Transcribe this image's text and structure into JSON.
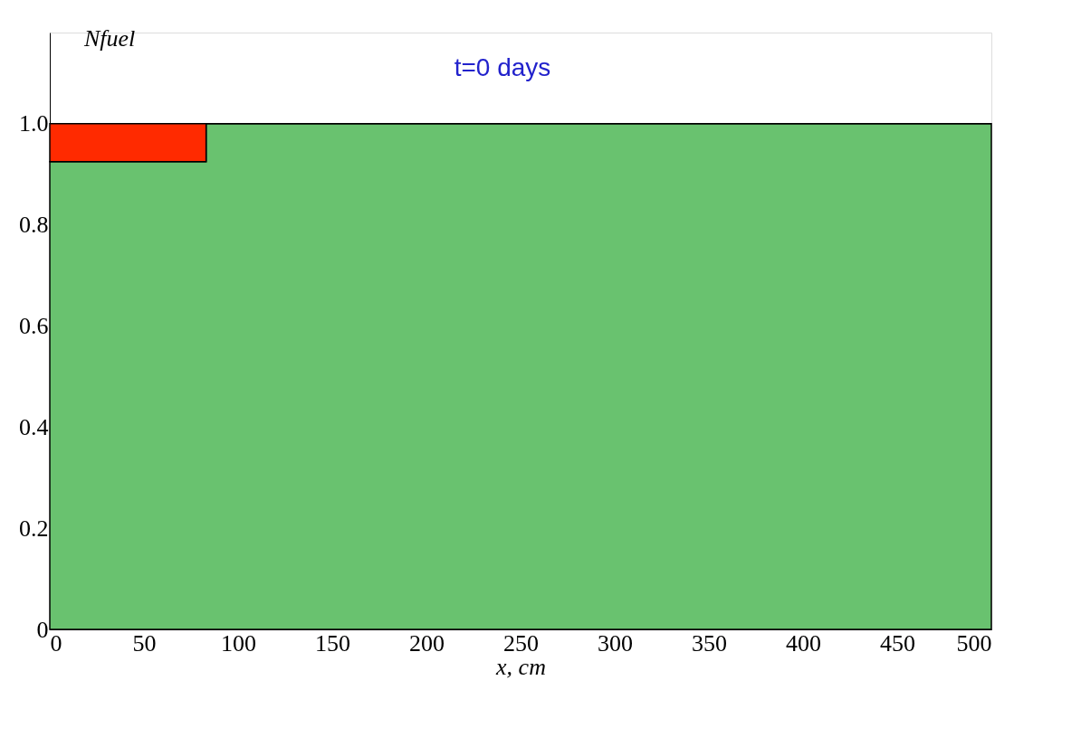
{
  "chart_data": {
    "type": "area",
    "stacked": true,
    "ylabel": "Nfuel",
    "xlabel": "x, cm",
    "annotations": [
      "t=0 days"
    ],
    "x": [
      0,
      83,
      83,
      500
    ],
    "series": [
      {
        "color": "#69c26f",
        "values": [
          0.925,
          0.925,
          1.0,
          1.0
        ]
      },
      {
        "color": "#ff2a00",
        "values": [
          0.075,
          0.075,
          0,
          0
        ]
      }
    ],
    "xlim": [
      0,
      500
    ],
    "xticks": [
      0,
      50,
      100,
      150,
      200,
      250,
      300,
      350,
      400,
      450,
      500
    ],
    "ylim": [
      0,
      1.18
    ],
    "yticks": [
      0,
      0.2,
      0.4,
      0.6,
      0.8,
      {
        "value": 1,
        "label": "1.0"
      }
    ],
    "grid": false
  }
}
